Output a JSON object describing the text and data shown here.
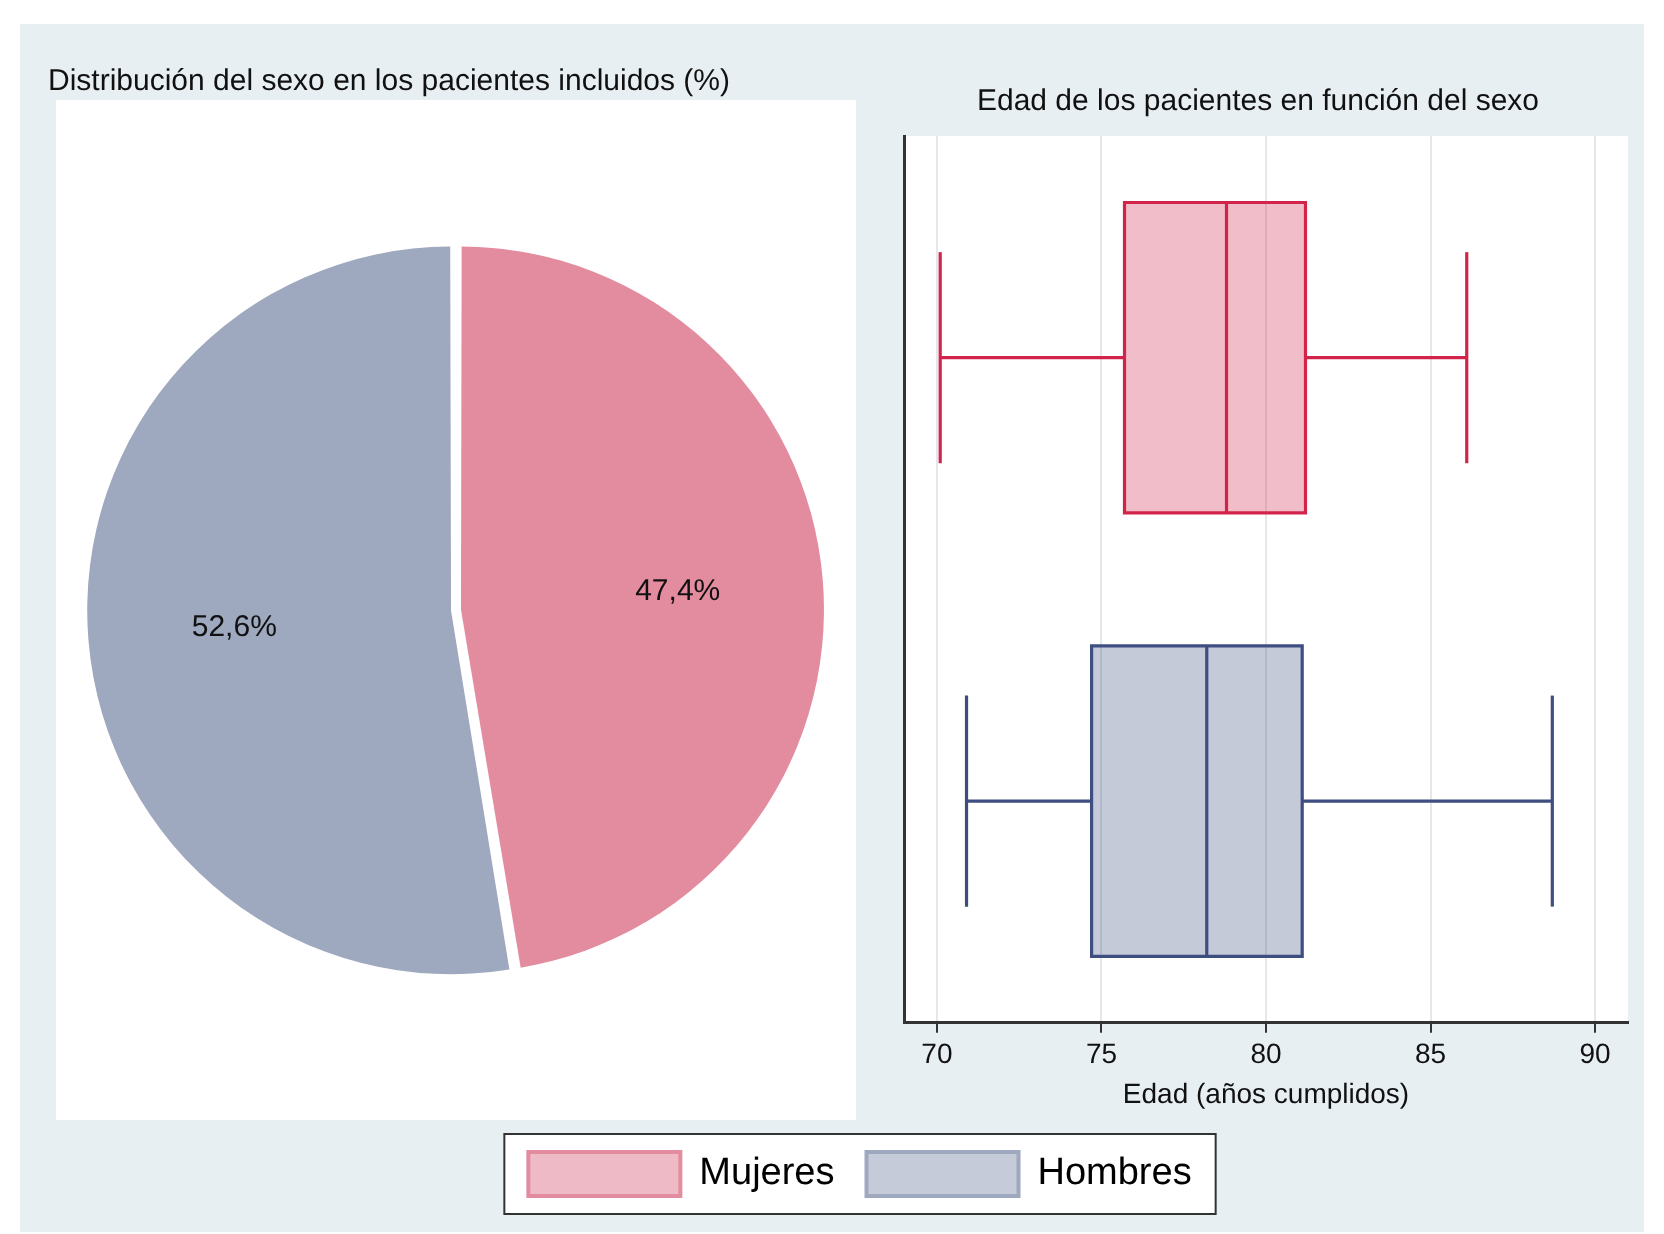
{
  "chart_data": [
    {
      "type": "pie",
      "title": "Distribución del sexo en los pacientes incluidos (%)",
      "categories": [
        "Mujeres",
        "Hombres"
      ],
      "values": [
        47.4,
        52.6
      ],
      "colors": [
        "#e38ca0",
        "#9ea8be"
      ],
      "value_labels": [
        "47,4%",
        "52,6%"
      ],
      "legend": "bottom"
    },
    {
      "type": "box",
      "title": "Edad de los pacientes en función del sexo",
      "xlabel": "Edad (años cumplidos)",
      "orientation": "horizontal",
      "categories": [
        null,
        null
      ],
      "xlim": [
        69,
        91
      ],
      "xticks": [
        70,
        75,
        80,
        85,
        90
      ],
      "grid": "x",
      "tick_labels": "x",
      "series": [
        {
          "color": "#d2244a",
          "boxes": [
            {
              "low": 70.1,
              "q1": 75.7,
              "median": 78.8,
              "q3": 81.2,
              "high": 86.1
            },
            null
          ]
        },
        {
          "color": "#3f4e80",
          "boxes": [
            null,
            {
              "low": 70.9,
              "q1": 74.7,
              "median": 78.2,
              "q3": 81.1,
              "high": 88.7
            }
          ]
        }
      ]
    }
  ]
}
